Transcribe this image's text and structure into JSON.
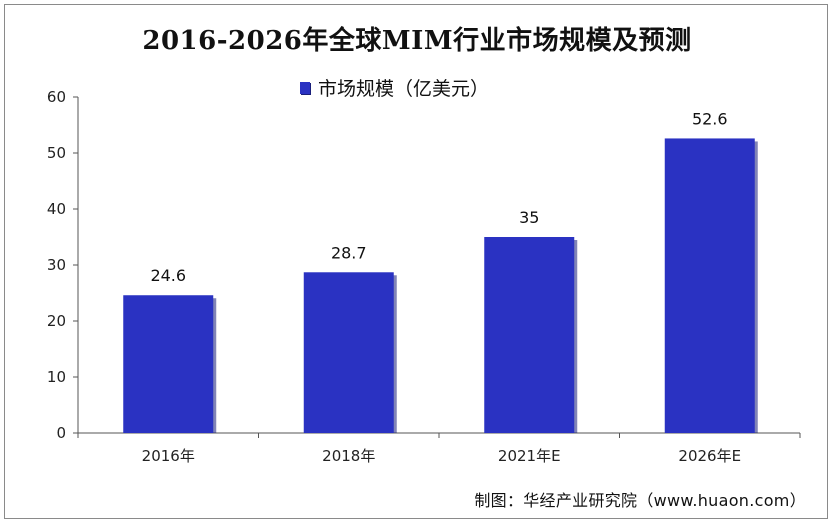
{
  "chart_data": {
    "type": "bar",
    "title": "2016-2026年全球MIM行业市场规模及预测",
    "categories": [
      "2016年",
      "2018年",
      "2021年E",
      "2026年E"
    ],
    "series": [
      {
        "name": "市场规模（亿美元）",
        "values": [
          24.6,
          28.7,
          35,
          52.6
        ],
        "data_labels": [
          "24.6",
          "28.7",
          "35",
          "52.6"
        ]
      }
    ],
    "ylim": [
      0,
      60
    ],
    "yticks": [
      0,
      10,
      20,
      30,
      40,
      50,
      60
    ],
    "ytick_labels": [
      "0",
      "10",
      "20",
      "30",
      "40",
      "50",
      "60"
    ],
    "xlabel": "",
    "ylabel": "",
    "legend_position": "top-center",
    "grid": false,
    "bar_color": "#2a32c2"
  },
  "source": "制图：华经产业研究院（www.huaon.com）"
}
